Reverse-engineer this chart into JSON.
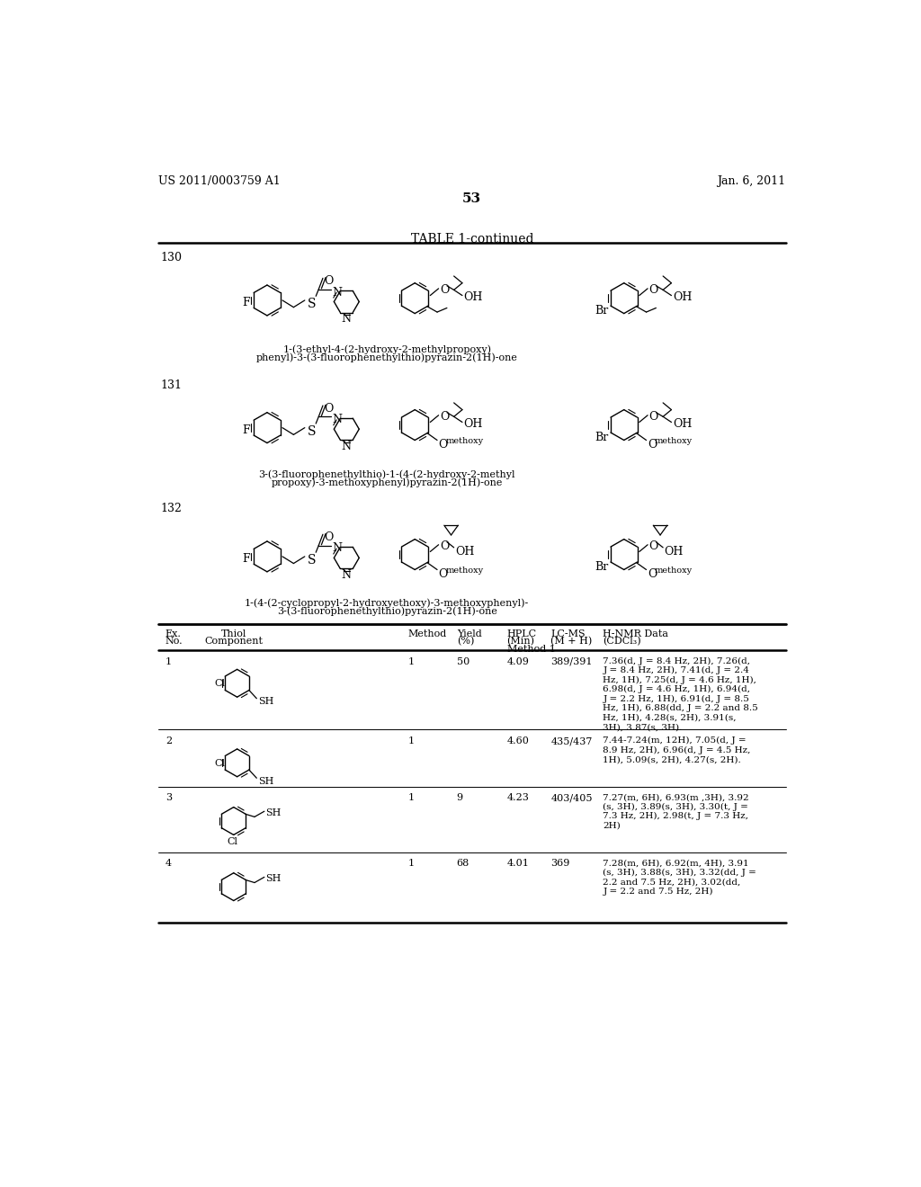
{
  "background_color": "#ffffff",
  "header_left": "US 2011/0003759 A1",
  "header_right": "Jan. 6, 2011",
  "page_number": "53",
  "table_title": "TABLE 1-continued",
  "compound_130_name_line1": "1-(3-ethyl-4-(2-hydroxy-2-methylpropoxy)",
  "compound_130_name_line2": "phenyl)-3-(3-fluorophenethylthio)pyrazin-2(1H)-one",
  "compound_131_name_line1": "3-(3-fluorophenethylthio)-1-(4-(2-hydroxy-2-methyl",
  "compound_131_name_line2": "propoxy)-3-methoxyphenyl)pyrazin-2(1H)-one",
  "compound_132_name_line1": "1-(4-(2-cyclopropyl-2-hydroxyethoxy)-3-methoxyphenyl)-",
  "compound_132_name_line2": "3-(3-fluorophenethylthio)pyrazin-2(1H)-one",
  "row1_hnmr": "7.36(d, J = 8.4 Hz, 2H), 7.26(d,\nJ = 8.4 Hz, 2H), 7.41(d, J = 2.4\nHz, 1H), 7.25(d, J = 4.6 Hz, 1H),\n6.98(d, J = 4.6 Hz, 1H), 6.94(d,\nJ = 2.2 Hz, 1H), 6.91(d, J = 8.5\nHz, 1H), 6.88(dd, J = 2.2 and 8.5\nHz, 1H), 4.28(s, 2H), 3.91(s,\n3H), 3.87(s, 3H).",
  "row2_hnmr": "7.44-7.24(m, 12H), 7.05(d, J =\n8.9 Hz, 2H), 6.96(d, J = 4.5 Hz,\n1H), 5.09(s, 2H), 4.27(s, 2H).",
  "row3_hnmr": "7.27(m, 6H), 6.93(m ,3H), 3.92\n(s, 3H), 3.89(s, 3H), 3.30(t, J =\n7.3 Hz, 2H), 2.98(t, J = 7.3 Hz,\n2H)",
  "row4_hnmr": "7.28(m, 6H), 6.92(m, 4H), 3.91\n(s, 3H), 3.88(s, 3H), 3.32(dd, J =\n2.2 and 7.5 Hz, 2H), 3.02(dd,\nJ = 2.2 and 7.5 Hz, 2H)"
}
